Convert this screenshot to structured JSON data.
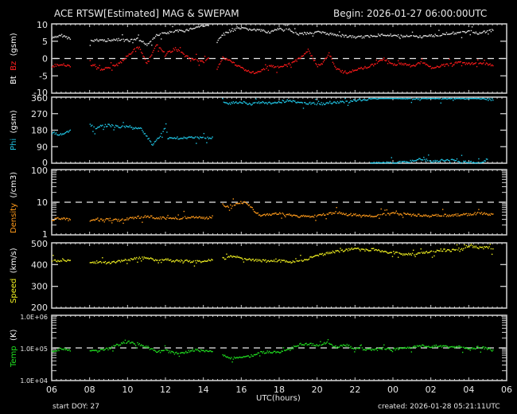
{
  "header": {
    "title": "ACE RTSW[Estimated] MAG & SWEPAM",
    "begin": "Begin: 2026-01-27 06:00:00UTC"
  },
  "footer": {
    "start_doy": "start DOY:  27",
    "created": "created: 2026-01-28 05:21:11UTC",
    "xlabel": "UTC(hours)"
  },
  "chart_data": [
    {
      "type": "scatter",
      "title": "Bt / Bz (gsm)",
      "ylabel_parts": [
        {
          "text": "Bt",
          "color": "#ffffff"
        },
        {
          "text": "Bz",
          "color": "#ff2020"
        },
        {
          "text": "(gsm)",
          "color": "#ffffff"
        }
      ],
      "ylim": [
        -10,
        10
      ],
      "yticks": [
        "10",
        "5",
        "0",
        "-5",
        "-10"
      ],
      "ytick_values": [
        10,
        5,
        0,
        -5,
        -10
      ],
      "reference_line": 0,
      "series": [
        {
          "name": "Bt",
          "color": "#e0e0e0",
          "x": [
            6.0,
            6.5,
            7.0,
            8.0,
            8.5,
            9.0,
            9.5,
            10.0,
            10.5,
            11.0,
            11.5,
            12.0,
            12.5,
            13.0,
            13.5,
            14.0,
            14.3,
            14.7,
            15.0,
            15.5,
            16.0,
            16.5,
            17.0,
            17.5,
            18.0,
            18.5,
            19.0,
            19.5,
            20.0,
            20.5,
            21.0,
            21.5,
            22.0,
            22.5,
            23.0,
            23.5,
            24.0,
            24.5,
            25.0,
            25.5,
            26.0,
            26.5,
            27.0,
            27.5,
            28.0,
            28.5,
            29.0,
            29.3
          ],
          "y": [
            6.0,
            6.8,
            5.8,
            5.2,
            5.5,
            5.3,
            5.6,
            5.2,
            5.8,
            4.2,
            6.8,
            7.5,
            8.0,
            8.2,
            9.0,
            9.8,
            9.5,
            5.0,
            7.0,
            8.5,
            8.8,
            8.5,
            8.2,
            7.8,
            8.7,
            8.5,
            7.2,
            7.5,
            7.8,
            7.3,
            7.0,
            6.6,
            6.3,
            6.4,
            6.8,
            7.0,
            6.9,
            6.5,
            6.6,
            6.4,
            6.8,
            7.0,
            7.5,
            7.4,
            8.2,
            7.4,
            8.0,
            8.6
          ]
        },
        {
          "name": "Bz",
          "color": "#ff1a1a",
          "x": [
            6.0,
            6.5,
            7.0,
            8.0,
            8.5,
            9.0,
            9.5,
            10.0,
            10.3,
            10.6,
            11.0,
            11.5,
            12.0,
            12.5,
            13.0,
            13.5,
            14.0,
            14.3,
            14.7,
            15.0,
            15.5,
            16.0,
            16.5,
            17.0,
            17.5,
            18.0,
            18.5,
            19.0,
            19.5,
            20.0,
            20.3,
            20.6,
            21.0,
            21.5,
            22.0,
            22.5,
            23.0,
            23.5,
            24.0,
            24.5,
            25.0,
            25.5,
            26.0,
            26.5,
            27.0,
            27.5,
            28.0,
            28.5,
            29.0,
            29.3
          ],
          "y": [
            -2.0,
            -1.5,
            -2.0,
            -1.5,
            -3.0,
            -2.5,
            -1.5,
            1.0,
            2.5,
            3.5,
            -1.5,
            4.0,
            1.5,
            3.0,
            1.0,
            0.0,
            -1.0,
            0.5,
            -3.0,
            0.5,
            -1.0,
            -2.5,
            -4.0,
            -3.5,
            -2.0,
            -2.5,
            -1.5,
            0.0,
            2.5,
            -2.0,
            -1.0,
            1.5,
            -3.0,
            -4.0,
            -3.0,
            -2.5,
            -1.5,
            0.0,
            -1.5,
            -1.5,
            -2.0,
            -1.0,
            -2.5,
            -2.0,
            -1.5,
            -1.0,
            -1.5,
            -1.0,
            -1.5,
            -2.0
          ]
        }
      ]
    },
    {
      "type": "scatter",
      "title": "Phi (gsm)",
      "ylabel_parts": [
        {
          "text": "Phi",
          "color": "#20c0e0"
        },
        {
          "text": "(gsm)",
          "color": "#ffffff"
        }
      ],
      "ylim": [
        0,
        360
      ],
      "yticks": [
        "360",
        "270",
        "180",
        "90",
        "0"
      ],
      "ytick_values": [
        360,
        270,
        180,
        90,
        0
      ],
      "series": [
        {
          "name": "Phi",
          "color": "#20c8e8",
          "x": [
            6.0,
            6.3,
            6.6,
            7.0,
            8.0,
            8.3,
            8.6,
            9.0,
            9.5,
            10.0,
            10.3,
            10.7,
            11.0,
            11.3,
            11.6,
            12.0,
            12.1,
            12.5,
            13.0,
            13.5,
            14.0,
            14.5,
            15.0,
            15.5,
            16.0,
            16.5,
            17.0,
            17.5,
            18.0,
            18.5,
            19.0,
            19.5,
            20.0,
            20.5,
            21.0,
            21.5,
            22.0,
            22.5,
            23.0,
            23.5,
            24.0,
            24.5,
            25.0,
            25.5,
            26.0,
            26.5,
            27.0,
            27.5,
            28.0,
            28.5,
            29.0,
            29.3
          ],
          "y": [
            170,
            160,
            165,
            185,
            210,
            195,
            205,
            210,
            200,
            205,
            195,
            190,
            145,
            105,
            140,
            200,
            140,
            140,
            140,
            142,
            143,
            140,
            330,
            330,
            335,
            325,
            335,
            330,
            335,
            345,
            330,
            330,
            325,
            330,
            335,
            335,
            345,
            350,
            355,
            358,
            360,
            358,
            355,
            358,
            360,
            358,
            360,
            355,
            358,
            360,
            350,
            345
          ]
        },
        {
          "name": "Phi-wrap",
          "color": "#20c8e8",
          "x": [
            22.8,
            23.5,
            24.0,
            24.5,
            25.0,
            25.5,
            26.0,
            26.5,
            27.0,
            27.5,
            28.0,
            28.5,
            29.0
          ],
          "y": [
            2,
            5,
            3,
            8,
            15,
            25,
            12,
            18,
            20,
            10,
            8,
            5,
            25
          ]
        }
      ]
    },
    {
      "type": "scatter",
      "title": "Density (/cm3)",
      "ylabel_parts": [
        {
          "text": "Density",
          "color": "#ff9a1a"
        },
        {
          "text": "(/cm3)",
          "color": "#ffffff"
        }
      ],
      "scale": "log",
      "ylim": [
        1,
        100
      ],
      "yticks": [
        "100",
        "10",
        "1"
      ],
      "ytick_values": [
        100,
        10,
        1
      ],
      "reference_line": 10,
      "series": [
        {
          "name": "Density",
          "color": "#ff9a1a",
          "x": [
            6.0,
            6.5,
            7.0,
            8.0,
            8.5,
            9.0,
            9.5,
            10.0,
            10.5,
            11.0,
            11.5,
            12.0,
            12.5,
            13.0,
            13.5,
            14.0,
            14.5,
            15.0,
            15.3,
            15.6,
            16.0,
            16.3,
            16.6,
            17.0,
            17.5,
            18.0,
            18.5,
            19.0,
            19.5,
            20.0,
            20.5,
            21.0,
            21.5,
            22.0,
            22.5,
            23.0,
            23.5,
            24.0,
            24.5,
            25.0,
            25.5,
            26.0,
            26.5,
            27.0,
            27.5,
            28.0,
            28.5,
            29.0,
            29.3
          ],
          "y": [
            3.0,
            3.4,
            2.9,
            2.8,
            3.0,
            3.1,
            2.9,
            3.3,
            3.6,
            3.8,
            3.5,
            3.4,
            3.3,
            3.5,
            3.6,
            3.4,
            3.6,
            8.5,
            7.5,
            9.0,
            10.5,
            9.5,
            6.0,
            4.0,
            4.3,
            4.6,
            4.2,
            3.9,
            3.8,
            4.0,
            4.6,
            5.0,
            4.4,
            4.3,
            3.9,
            4.0,
            4.3,
            4.6,
            4.5,
            4.2,
            4.1,
            4.0,
            4.2,
            4.0,
            4.3,
            4.4,
            4.8,
            4.5,
            4.3
          ]
        }
      ]
    },
    {
      "type": "scatter",
      "title": "Speed (km/s)",
      "ylabel_parts": [
        {
          "text": "Speed",
          "color": "#f0f020"
        },
        {
          "text": "(km/s)",
          "color": "#ffffff"
        }
      ],
      "ylim": [
        200,
        500
      ],
      "yticks": [
        "500",
        "400",
        "300",
        "200"
      ],
      "ytick_values": [
        500,
        400,
        300,
        200
      ],
      "series": [
        {
          "name": "Speed",
          "color": "#f0f020",
          "x": [
            6.0,
            6.5,
            7.0,
            8.0,
            8.5,
            9.0,
            9.5,
            10.0,
            10.5,
            11.0,
            11.5,
            12.0,
            12.5,
            13.0,
            13.5,
            14.0,
            14.5,
            15.0,
            15.5,
            16.0,
            16.5,
            17.0,
            17.5,
            18.0,
            18.5,
            19.0,
            19.5,
            20.0,
            20.5,
            21.0,
            21.5,
            22.0,
            22.5,
            23.0,
            23.5,
            24.0,
            24.5,
            25.0,
            25.5,
            26.0,
            26.5,
            27.0,
            27.5,
            28.0,
            28.5,
            29.0,
            29.3
          ],
          "y": [
            420,
            418,
            422,
            412,
            415,
            410,
            418,
            425,
            430,
            435,
            420,
            425,
            418,
            420,
            415,
            418,
            425,
            430,
            440,
            432,
            425,
            420,
            418,
            420,
            415,
            418,
            430,
            445,
            455,
            462,
            470,
            475,
            468,
            472,
            462,
            458,
            450,
            450,
            455,
            462,
            470,
            465,
            475,
            490,
            478,
            482,
            470
          ]
        }
      ]
    },
    {
      "type": "scatter",
      "title": "Temp (K)",
      "ylabel_parts": [
        {
          "text": "Temp",
          "color": "#20e020"
        },
        {
          "text": "(K)",
          "color": "#ffffff"
        }
      ],
      "scale": "log",
      "ylim": [
        10000,
        1000000
      ],
      "yticks": [
        "1.0E+06",
        "1.0E+05",
        "1.0E+04"
      ],
      "ytick_values": [
        1000000,
        100000,
        10000
      ],
      "reference_line": 100000,
      "series": [
        {
          "name": "Temp",
          "color": "#20e020",
          "x": [
            6.0,
            6.5,
            7.0,
            8.0,
            8.5,
            9.0,
            9.5,
            10.0,
            10.5,
            11.0,
            11.5,
            12.0,
            12.5,
            13.0,
            13.5,
            14.0,
            14.5,
            15.0,
            15.5,
            16.0,
            16.5,
            17.0,
            17.5,
            18.0,
            18.5,
            19.0,
            19.5,
            20.0,
            20.5,
            21.0,
            21.5,
            22.0,
            22.5,
            23.0,
            23.5,
            24.0,
            24.5,
            25.0,
            25.5,
            26.0,
            26.5,
            27.0,
            27.5,
            28.0,
            28.5,
            29.0,
            29.3
          ],
          "y": [
            85000,
            95000,
            90000,
            80000,
            90000,
            100000,
            130000,
            160000,
            140000,
            110000,
            80000,
            85000,
            70000,
            75000,
            90000,
            85000,
            80000,
            60000,
            50000,
            55000,
            60000,
            75000,
            78000,
            75000,
            90000,
            130000,
            140000,
            125000,
            150000,
            110000,
            125000,
            100000,
            95000,
            90000,
            100000,
            95000,
            105000,
            110000,
            120000,
            115000,
            120000,
            105000,
            110000,
            95000,
            110000,
            100000,
            85000
          ]
        }
      ]
    }
  ],
  "x_axis": {
    "range": [
      6,
      30
    ],
    "ticks": [
      "06",
      "08",
      "10",
      "12",
      "14",
      "16",
      "18",
      "20",
      "22",
      "00",
      "02",
      "04",
      "06"
    ],
    "tick_values": [
      6,
      8,
      10,
      12,
      14,
      16,
      18,
      20,
      22,
      24,
      26,
      28,
      30
    ]
  }
}
